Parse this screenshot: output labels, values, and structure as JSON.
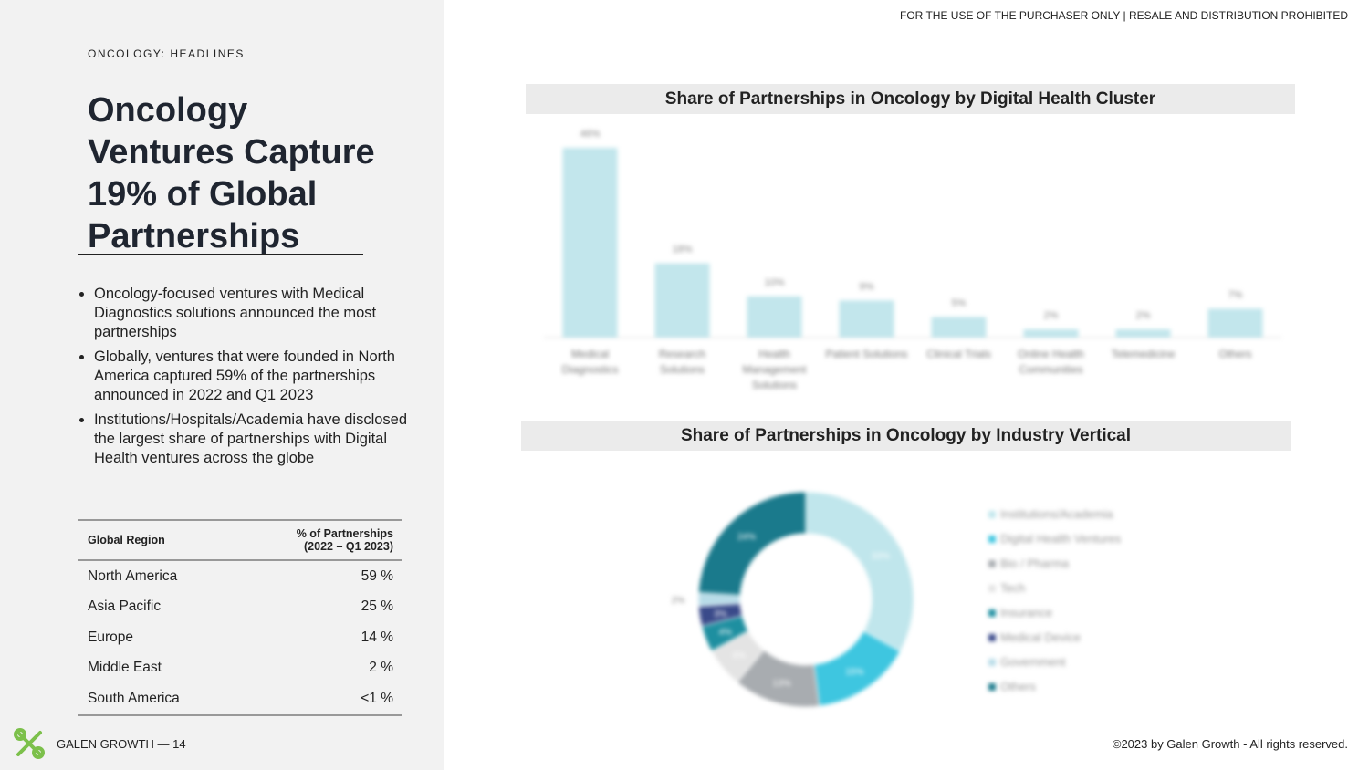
{
  "notice": "FOR THE USE OF THE PURCHASER ONLY | RESALE AND DISTRIBUTION PROHIBITED",
  "header": {
    "eyebrow": "ONCOLOGY: HEADLINES",
    "title": "Oncology Ventures Capture 19% of Global Partnerships"
  },
  "bullets": [
    "Oncology-focused ventures with Medical Diagnostics solutions announced the most partnerships",
    "Globally, ventures that were founded in North America captured 59% of the partnerships announced in 2022 and Q1 2023",
    "Institutions/Hospitals/Academia have disclosed the largest share of partnerships with Digital Health ventures across the globe"
  ],
  "table": {
    "headers": [
      "Global Region",
      "% of  Partnerships (2022 – Q1 2023)"
    ],
    "rows": [
      [
        "North America",
        "59 %"
      ],
      [
        "Asia Pacific",
        "25 %"
      ],
      [
        "Europe",
        "14 %"
      ],
      [
        "Middle East",
        "2 %"
      ],
      [
        "South America",
        "<1 %"
      ]
    ]
  },
  "footer": {
    "brand": "GALEN GROWTH — 14",
    "copyright": "©2023 by Galen Growth  - All rights reserved."
  },
  "chart_data": [
    {
      "type": "bar",
      "title": "Share of Partnerships in Oncology by Digital Health Cluster",
      "categories": [
        "Medical Diagnostics",
        "Research Solutions",
        "Health Management Solutions",
        "Patient Solutions",
        "Clinical Trials",
        "Online Health Communities",
        "Telemedicine",
        "Others"
      ],
      "values": [
        46,
        18,
        10,
        9,
        5,
        2,
        2,
        7
      ],
      "value_labels": [
        "46%",
        "18%",
        "10%",
        "9%",
        "5%",
        "2%",
        "2%",
        "7%"
      ],
      "color": "#c2e6ec"
    },
    {
      "type": "pie",
      "title": "Share of Partnerships in Oncology by Industry Vertical",
      "categories": [
        "Institutions/Academia",
        "Digital Health Ventures",
        "Bio / Pharma",
        "Tech",
        "Insurance",
        "Medical Device",
        "Government",
        "Others"
      ],
      "values": [
        33,
        15,
        13,
        6,
        4,
        3,
        2,
        24
      ],
      "value_labels": [
        "33%",
        "15%",
        "13%",
        "6%",
        "4%",
        "3%",
        "2%",
        "24%"
      ],
      "colors": [
        "#c0e6ec",
        "#3ec6e0",
        "#a8acb0",
        "#e4e4e4",
        "#1e8fa0",
        "#3a4a8a",
        "#b8dce8",
        "#1a7a8c"
      ]
    }
  ]
}
